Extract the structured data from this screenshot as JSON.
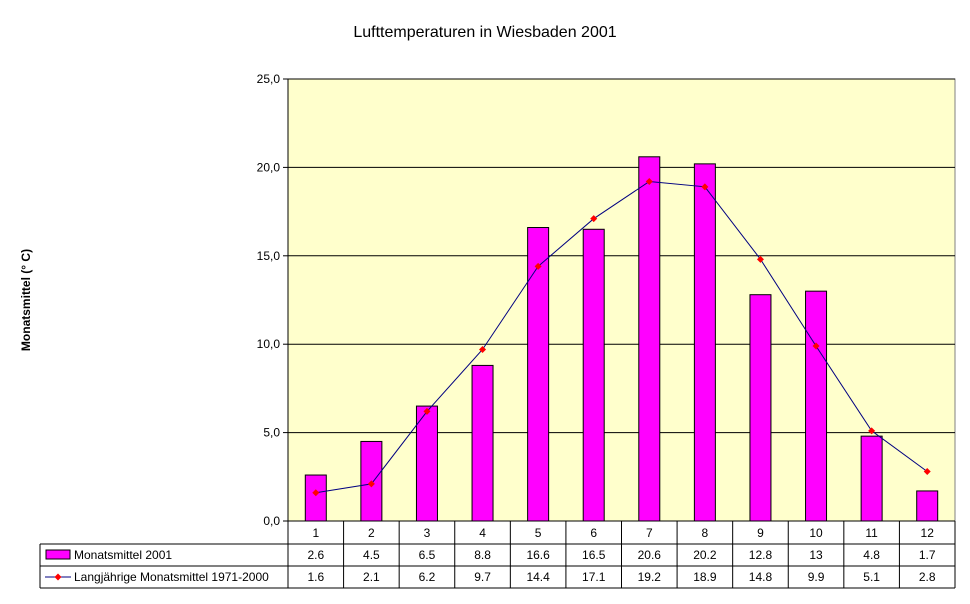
{
  "chart_data": {
    "type": "bar",
    "title": "Lufttemperaturen in Wiesbaden 2001",
    "xlabel": "",
    "ylabel": "Monatsmittel (° C)",
    "ylim": [
      0,
      25
    ],
    "yticks": [
      "0,0",
      "5,0",
      "10,0",
      "15,0",
      "20,0",
      "25,0"
    ],
    "categories": [
      "1",
      "2",
      "3",
      "4",
      "5",
      "6",
      "7",
      "8",
      "9",
      "10",
      "11",
      "12"
    ],
    "grid": true,
    "plot_background": "#FFFFCC",
    "series": [
      {
        "name": "Monatsmittel 2001",
        "kind": "bar",
        "color": "#FF00FF",
        "values": [
          2.6,
          4.5,
          6.5,
          8.8,
          16.6,
          16.5,
          20.6,
          20.2,
          12.8,
          13,
          4.8,
          1.7
        ],
        "labels": [
          "2.6",
          "4.5",
          "6.5",
          "8.8",
          "16.6",
          "16.5",
          "20.6",
          "20.2",
          "12.8",
          "13",
          "4.8",
          "1.7"
        ]
      },
      {
        "name": "Langjährige Monatsmittel 1971-2000",
        "kind": "line",
        "line_color": "#000080",
        "marker_color": "#FF0000",
        "values": [
          1.6,
          2.1,
          6.2,
          9.7,
          14.4,
          17.1,
          19.2,
          18.9,
          14.8,
          9.9,
          5.1,
          2.8
        ],
        "labels": [
          "1.6",
          "2.1",
          "6.2",
          "9.7",
          "14.4",
          "17.1",
          "19.2",
          "18.9",
          "14.8",
          "9.9",
          "5.1",
          "2.8"
        ]
      }
    ],
    "legend": "data-table"
  }
}
